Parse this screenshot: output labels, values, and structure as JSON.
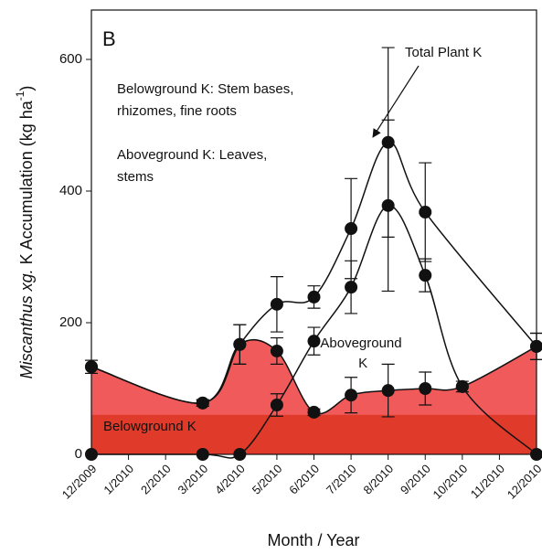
{
  "chart_data": {
    "type": "line",
    "panel_label": "B",
    "xlabel": "Month / Year",
    "ylabel": [
      "Miscanthus xg.",
      " K Accumulation (kg ha",
      "-1",
      ")"
    ],
    "categories": [
      "12/2009",
      "1/2010",
      "2/2010",
      "3/2010",
      "4/2010",
      "5/2010",
      "6/2010",
      "7/2010",
      "8/2010",
      "9/2010",
      "10/2010",
      "11/2010",
      "12/2010"
    ],
    "ylim": [
      0,
      675
    ],
    "yticks": [
      0,
      200,
      400,
      600
    ],
    "annotations": [
      "Belowground K: Stem bases,",
      "rhizomes, fine roots",
      "Aboveground K: Leaves,",
      "stems"
    ],
    "band": {
      "name": "Belowground K",
      "value": 60,
      "color": "#dc3522"
    },
    "series": [
      {
        "name": "Belowground K",
        "fill": "#f05a5a",
        "color": "#111111",
        "x": [
          "12/2009",
          "3/2010",
          "4/2010",
          "5/2010",
          "6/2010",
          "7/2010",
          "8/2010",
          "9/2010",
          "10/2010",
          "12/2010"
        ],
        "values": [
          133,
          78,
          167,
          157,
          64,
          90,
          97,
          100,
          103,
          164
        ],
        "errors": [
          10,
          5,
          30,
          20,
          5,
          27,
          40,
          25,
          8,
          20
        ]
      },
      {
        "name": "Aboveground K",
        "color": "#111111",
        "x": [
          "12/2009",
          "3/2010",
          "4/2010",
          "5/2010",
          "6/2010",
          "7/2010",
          "8/2010",
          "9/2010",
          "10/2010",
          "12/2010"
        ],
        "values": [
          0,
          0,
          0,
          75,
          172,
          254,
          378,
          272,
          103,
          0
        ],
        "errors": [
          0,
          0,
          0,
          17,
          21,
          40,
          130,
          25,
          0,
          0
        ]
      },
      {
        "name": "Total Plant K",
        "color": "#111111",
        "x": [
          "12/2009",
          "3/2010",
          "4/2010",
          "5/2010",
          "6/2010",
          "7/2010",
          "8/2010",
          "9/2010",
          "12/2010"
        ],
        "values": [
          133,
          78,
          167,
          228,
          239,
          343,
          474,
          368,
          164
        ],
        "errors": [
          10,
          5,
          30,
          42,
          17,
          76,
          144,
          75,
          20
        ]
      }
    ]
  }
}
